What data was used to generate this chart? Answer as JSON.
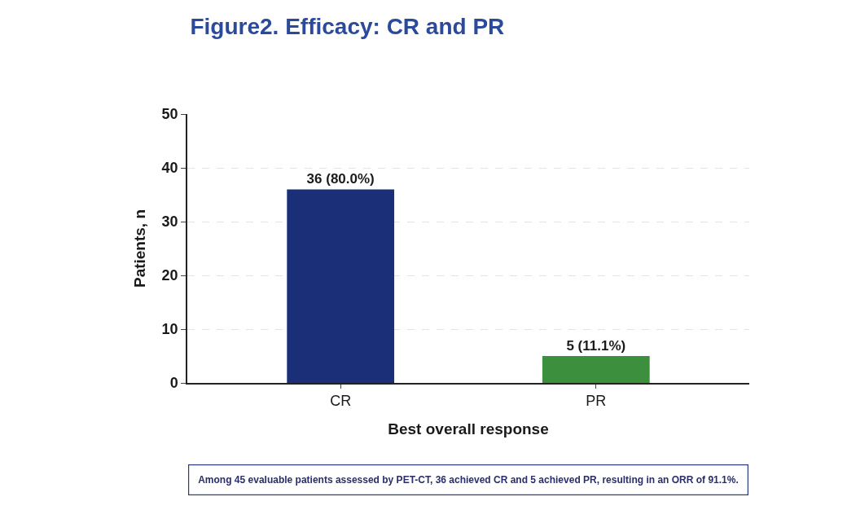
{
  "chart_data": {
    "type": "bar",
    "title": "Figure2. Efficacy: CR and PR",
    "xlabel": "Best overall response",
    "ylabel": "Patients, n",
    "categories": [
      "CR",
      "PR"
    ],
    "values": [
      36,
      5
    ],
    "colors": [
      "#1b2f78",
      "#3c8f3c"
    ],
    "value_labels": [
      "36 (80.0%)",
      "5 (11.1%)"
    ],
    "ylim": [
      0,
      50
    ],
    "yticks": [
      0,
      10,
      20,
      30,
      40,
      50
    ],
    "grid": "y",
    "annotations": [
      "Among 45 evaluable patients assessed by PET-CT, 36 achieved CR and 5 achieved PR, resulting in an ORR of 91.1%."
    ]
  }
}
